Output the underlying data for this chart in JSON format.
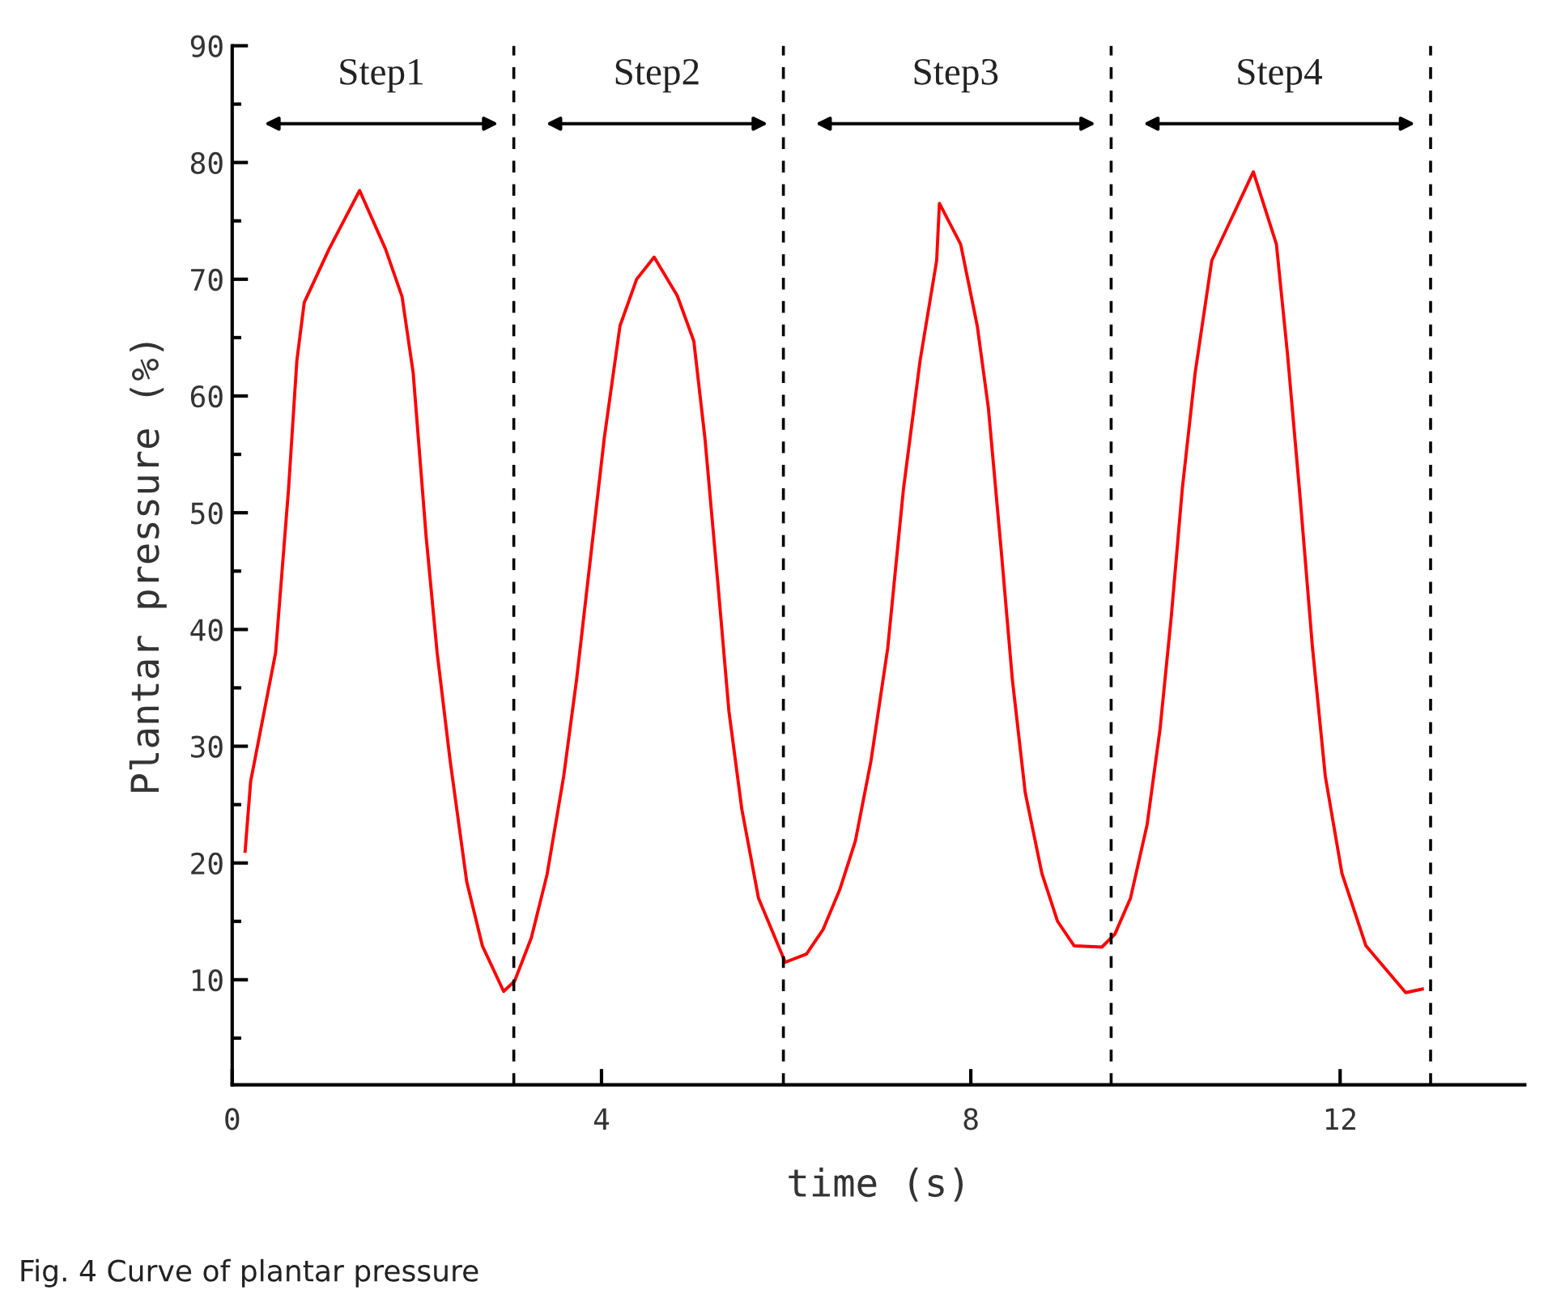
{
  "chart_data": {
    "type": "line",
    "xlabel": "time (s)",
    "ylabel": "Plantar pressure (%)",
    "x": [
      0.14,
      0.2,
      0.47,
      0.61,
      0.7,
      0.78,
      1.05,
      1.38,
      1.66,
      1.84,
      1.96,
      2.1,
      2.22,
      2.36,
      2.54,
      2.71,
      2.94,
      3.06,
      3.24,
      3.41,
      3.59,
      3.73,
      3.85,
      4.03,
      4.2,
      4.38,
      4.57,
      4.82,
      5.0,
      5.12,
      5.26,
      5.38,
      5.52,
      5.7,
      5.99,
      6.22,
      6.4,
      6.58,
      6.75,
      6.92,
      7.1,
      7.27,
      7.45,
      7.63,
      7.66,
      7.89,
      8.07,
      8.19,
      8.33,
      8.45,
      8.59,
      8.77,
      8.94,
      9.12,
      9.42,
      9.56,
      9.73,
      9.91,
      10.05,
      10.17,
      10.29,
      10.43,
      10.61,
      11.06,
      11.31,
      11.43,
      11.57,
      11.7,
      11.84,
      12.02,
      12.28,
      12.71,
      12.89
    ],
    "series": [
      {
        "color": "#ff0000",
        "values": [
          21,
          27,
          38,
          52,
          63,
          68,
          72.6,
          77.6,
          72.6,
          68.5,
          62,
          48,
          38,
          28.8,
          18.4,
          12.9,
          9,
          9.9,
          13.6,
          19,
          27.4,
          35.7,
          44,
          56.4,
          66,
          70,
          71.9,
          68.6,
          64.7,
          56.4,
          44,
          33,
          24.6,
          17,
          11.5,
          12.2,
          14.3,
          17.7,
          21.9,
          28.8,
          38.4,
          52,
          63,
          71.6,
          76.5,
          73,
          66,
          59,
          46.7,
          35.7,
          26,
          19.1,
          15,
          12.9,
          12.8,
          13.9,
          17,
          23.3,
          31.5,
          41,
          52,
          62,
          71.6,
          79.2,
          73,
          63.6,
          51,
          38.5,
          27.4,
          19.1,
          12.9,
          8.9,
          9.2
        ]
      }
    ],
    "xlim": [
      0,
      14
    ],
    "xticks": [
      0,
      4,
      8,
      12
    ],
    "ylim": [
      1,
      90
    ],
    "yticks": [
      {
        "value": 5,
        "label": null
      },
      10,
      {
        "value": 15,
        "label": null
      },
      20,
      {
        "value": 25,
        "label": null
      },
      30,
      {
        "value": 35,
        "label": null
      },
      40,
      {
        "value": 45,
        "label": null
      },
      50,
      {
        "value": 55,
        "label": null
      },
      60,
      {
        "value": 65,
        "label": null
      },
      70,
      {
        "value": 75,
        "label": null
      },
      80,
      {
        "value": 85,
        "label": null
      },
      90
    ],
    "grid": false,
    "legend": false,
    "marker": "none",
    "line_style": "solid",
    "ref_lines": [
      {
        "axis": "x",
        "value": 3.05,
        "color": "#000000",
        "line_style": "dashed"
      },
      {
        "axis": "x",
        "value": 5.97,
        "color": "#000000",
        "line_style": "dashed"
      },
      {
        "axis": "x",
        "value": 9.52,
        "color": "#000000",
        "line_style": "dashed"
      },
      {
        "axis": "x",
        "value": 12.98,
        "color": "#000000",
        "line_style": "dashed"
      }
    ],
    "annotations": [
      "Step1",
      "Step2",
      "Step3",
      "Step4",
      "Fig. 4 Curve of plantar pressure"
    ]
  }
}
